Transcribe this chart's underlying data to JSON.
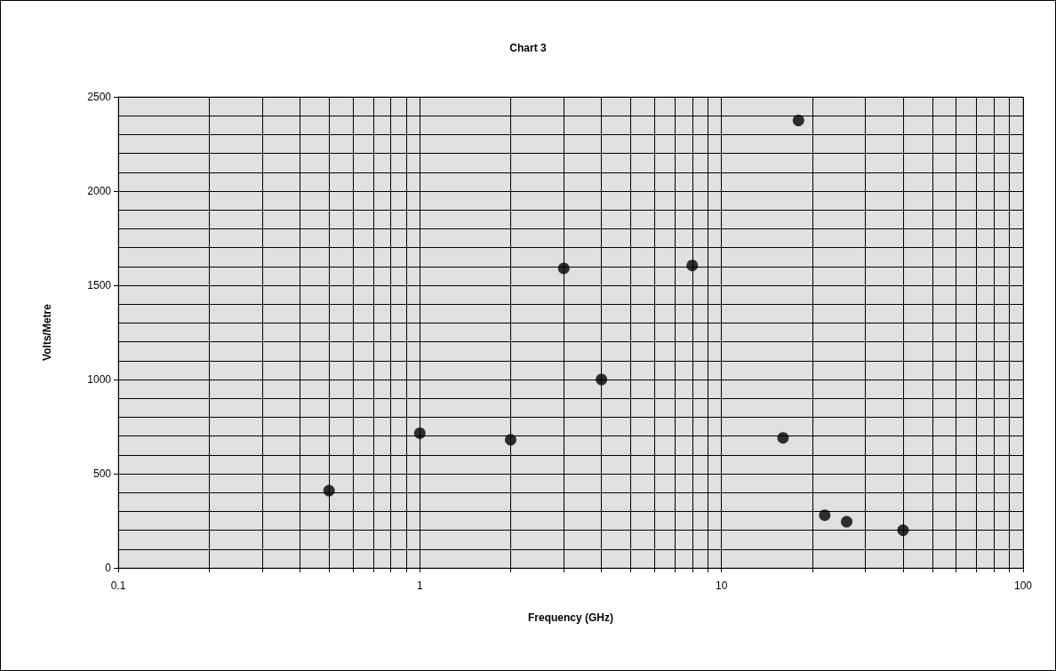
{
  "chart_data": {
    "type": "scatter",
    "title": "Chart 3",
    "xlabel": "Frequency (GHz)",
    "ylabel": "Volts/Metre",
    "x": [
      0.5,
      1,
      2,
      3,
      4,
      8,
      16,
      18,
      22,
      26,
      40
    ],
    "series": [
      {
        "color": "#000000",
        "values": [
          410,
          715,
          680,
          1590,
          1000,
          1605,
          690,
          2375,
          280,
          245,
          200
        ]
      }
    ],
    "log": "x",
    "xlim": [
      0.1,
      100
    ],
    "xticks": [
      0.1,
      1,
      10,
      100
    ],
    "ylim": [
      0,
      2500
    ],
    "yticks": [
      0,
      500,
      1000,
      1500,
      2000,
      2500
    ],
    "grid": true,
    "marker": "circle"
  }
}
